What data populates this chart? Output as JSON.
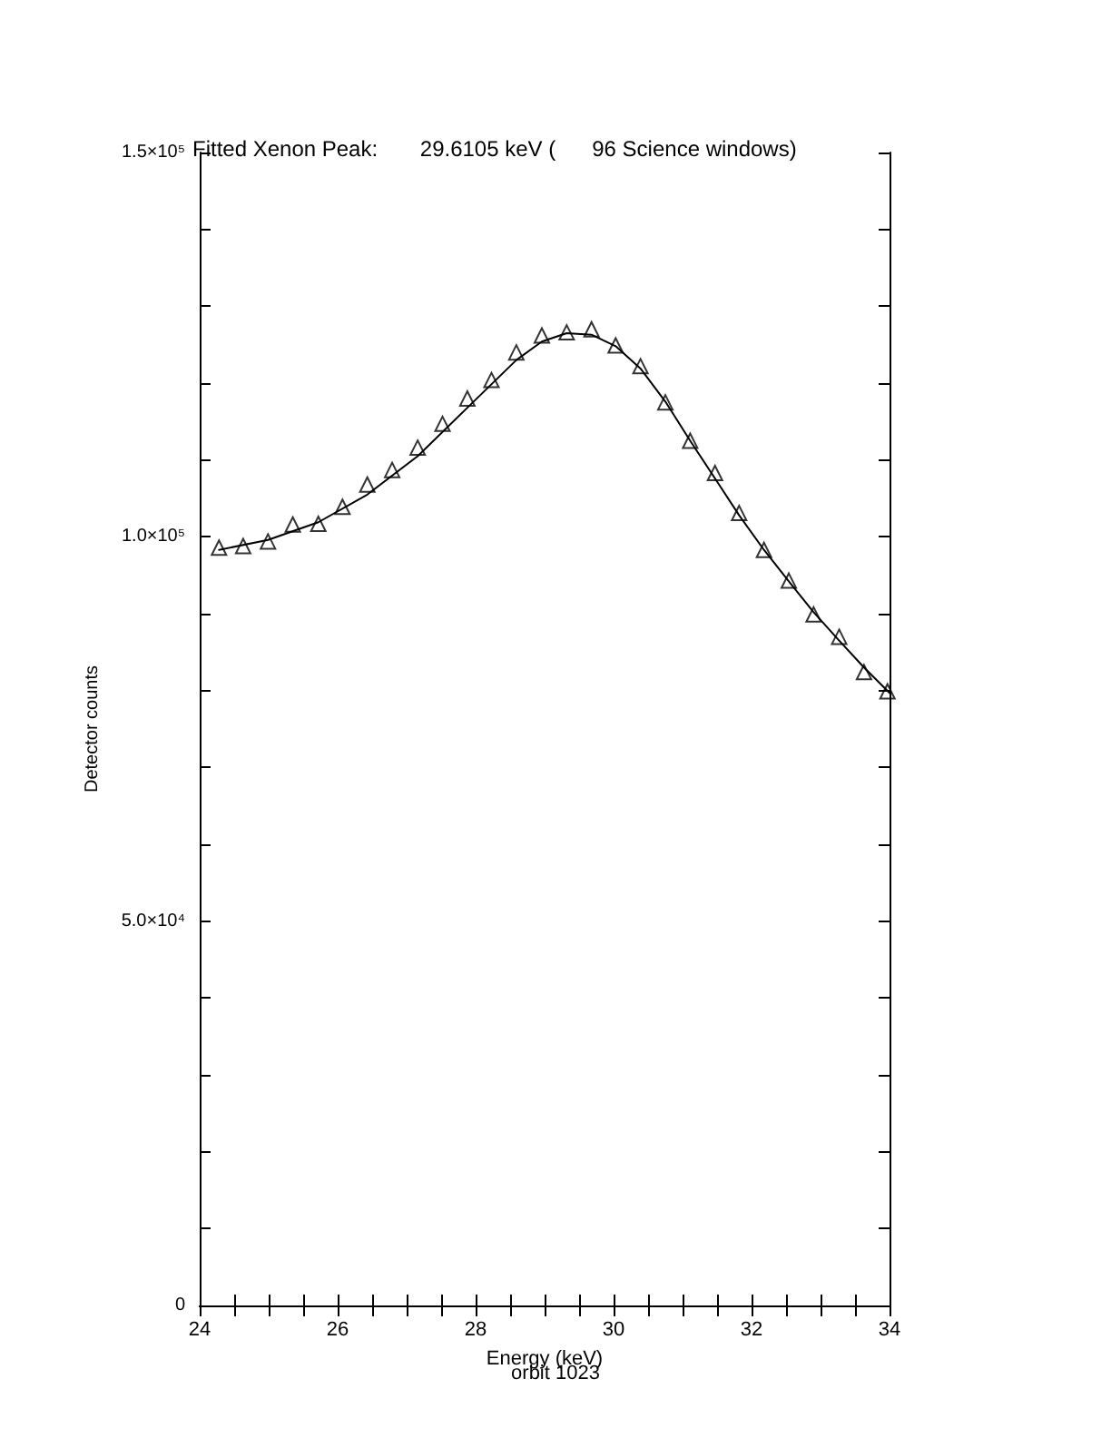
{
  "chart_data": {
    "type": "scatter",
    "title": "Fitted Xenon Peak:       29.6105 keV (      96 Science windows)",
    "xlabel": "Energy (keV)",
    "ylabel": "Detector counts",
    "annotations": [
      "orbit 1023"
    ],
    "xlim": [
      24,
      34
    ],
    "ylim": [
      0,
      150000
    ],
    "xticks": [
      24,
      {
        "value": 24.5,
        "label": null
      },
      {
        "value": 25,
        "label": null
      },
      {
        "value": 25.5,
        "label": null
      },
      26,
      {
        "value": 26.5,
        "label": null
      },
      {
        "value": 27,
        "label": null
      },
      {
        "value": 27.5,
        "label": null
      },
      28,
      {
        "value": 28.5,
        "label": null
      },
      {
        "value": 29,
        "label": null
      },
      {
        "value": 29.5,
        "label": null
      },
      30,
      {
        "value": 30.5,
        "label": null
      },
      {
        "value": 31,
        "label": null
      },
      {
        "value": 31.5,
        "label": null
      },
      32,
      {
        "value": 32.5,
        "label": null
      },
      {
        "value": 33,
        "label": null
      },
      {
        "value": 33.5,
        "label": null
      },
      34
    ],
    "yticks": [
      0,
      {
        "value": 10000,
        "label": null
      },
      {
        "value": 20000,
        "label": null
      },
      {
        "value": 30000,
        "label": null
      },
      {
        "value": 40000,
        "label": null
      },
      {
        "value": 50000,
        "label": "5.0×10⁴"
      },
      {
        "value": 60000,
        "label": null
      },
      {
        "value": 70000,
        "label": null
      },
      {
        "value": 80000,
        "label": null
      },
      {
        "value": 90000,
        "label": null
      },
      {
        "value": 100000,
        "label": "1.0×10⁵"
      },
      {
        "value": 110000,
        "label": null
      },
      {
        "value": 120000,
        "label": null
      },
      {
        "value": 130000,
        "label": null
      },
      {
        "value": 140000,
        "label": null
      },
      {
        "value": 150000,
        "label": "1.5×10⁵"
      }
    ],
    "grid": false,
    "series": [
      {
        "marker": "triangle",
        "color": "#000000",
        "x": [
          24.28,
          24.63,
          24.99,
          25.35,
          25.72,
          26.07,
          26.43,
          26.79,
          27.16,
          27.52,
          27.88,
          28.23,
          28.59,
          28.96,
          29.32,
          29.68,
          30.03,
          30.39,
          30.75,
          31.11,
          31.47,
          31.82,
          32.18,
          32.54,
          32.9,
          33.27,
          33.63,
          33.97
        ],
        "values": [
          98600,
          98800,
          99400,
          101600,
          101700,
          103900,
          106800,
          108700,
          111600,
          114700,
          118000,
          120400,
          124000,
          126200,
          126600,
          127000,
          124900,
          122200,
          117500,
          112500,
          108300,
          103100,
          98300,
          94300,
          89900,
          87000,
          82400,
          79900
        ]
      },
      {
        "type": "line",
        "marker": "none",
        "line_style": "solid",
        "color": "#000000",
        "x": [
          24.28,
          24.99,
          25.72,
          26.43,
          27.16,
          27.88,
          28.59,
          28.96,
          29.32,
          29.68,
          30.03,
          30.39,
          30.75,
          31.11,
          31.47,
          31.82,
          32.18,
          32.54,
          32.9,
          33.27,
          33.63,
          34
        ],
        "values": [
          98300,
          99600,
          101900,
          105500,
          110500,
          116800,
          123000,
          125400,
          126500,
          126300,
          124800,
          121900,
          117600,
          112500,
          107600,
          102800,
          98300,
          94200,
          90200,
          86500,
          83000,
          79700
        ]
      }
    ]
  }
}
